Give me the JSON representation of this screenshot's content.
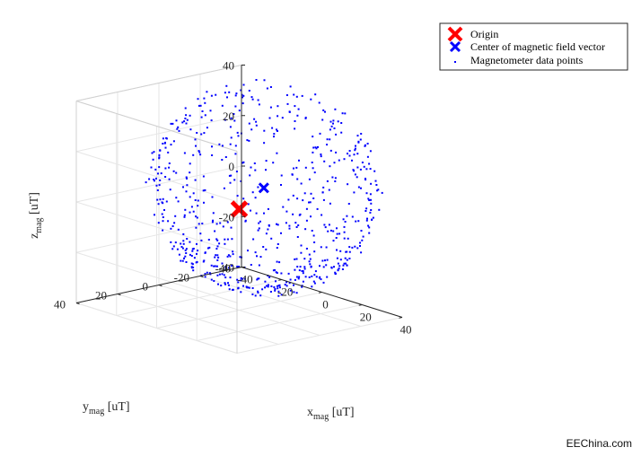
{
  "chart_data": {
    "type": "scatter",
    "projection": "3d",
    "title": "",
    "xlabel": "x",
    "xlabel_sub": "mag",
    "xlabel_unit": " [uT]",
    "ylabel": "y",
    "ylabel_sub": "mag",
    "ylabel_unit": " [uT]",
    "zlabel": "z",
    "zlabel_sub": "mag",
    "zlabel_unit": " [uT]",
    "xlim": [
      -40,
      40
    ],
    "ylim": [
      -40,
      40
    ],
    "zlim": [
      -40,
      40
    ],
    "xticks": [
      -40,
      -20,
      0,
      20,
      40
    ],
    "yticks": [
      -40,
      -20,
      0,
      20,
      40
    ],
    "zticks": [
      -40,
      -20,
      0,
      20,
      40
    ],
    "xtick_labels": [
      "-40",
      "-20",
      "0",
      "20",
      "40"
    ],
    "ytick_labels": [
      "-40",
      "-20",
      "0",
      "20",
      "40"
    ],
    "ztick_labels": [
      "-40",
      "-20",
      "0",
      "20",
      "40"
    ],
    "grid": true,
    "legend_position": "top-right",
    "series": [
      {
        "name": "Origin",
        "marker": "x",
        "color": "#ff0000",
        "points": [
          [
            0,
            0,
            0
          ]
        ]
      },
      {
        "name": "Center of magnetic field vector",
        "marker": "x",
        "color": "#0000ff",
        "points": [
          [
            4,
            -8,
            8
          ]
        ]
      },
      {
        "name": "Magnetometer data points",
        "marker": "dot",
        "color": "#0000ff",
        "generator": {
          "kind": "sphere-shell",
          "center": [
            4,
            -8,
            8
          ],
          "radius": 40,
          "count": 700,
          "seed": 7,
          "bias": "bottom-dense"
        }
      }
    ]
  },
  "watermark": "EEChina.com",
  "colors": {
    "axis": "#262626",
    "grid": "#e6e6e6",
    "origin": "#ff0000",
    "center": "#0000ff",
    "points": "#0000ff"
  }
}
